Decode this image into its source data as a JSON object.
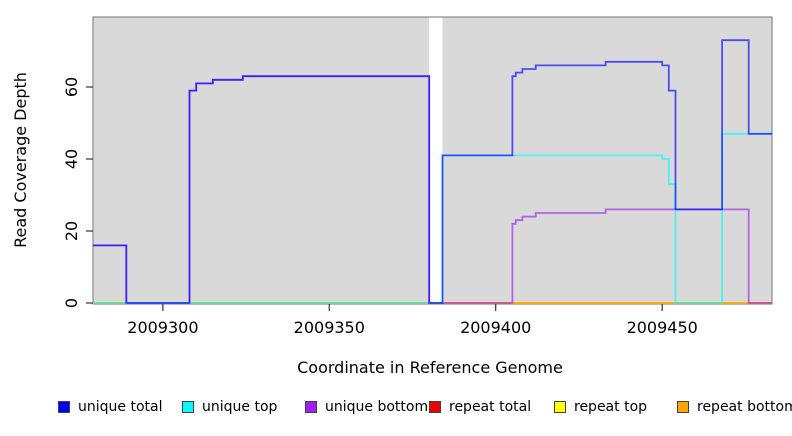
{
  "chart_data": {
    "type": "line",
    "subtype": "step",
    "title": "",
    "xlabel": "Coordinate in Reference Genome",
    "ylabel": "Read Coverage Depth",
    "xlim": [
      2009279,
      2009483
    ],
    "ylim": [
      0,
      79
    ],
    "x_ticks": [
      "2009300",
      "2009350",
      "2009400",
      "2009450"
    ],
    "x_tick_values": [
      2009300,
      2009350,
      2009400,
      2009450
    ],
    "y_ticks": [
      "0",
      "20",
      "40",
      "60"
    ],
    "y_tick_values": [
      0,
      20,
      40,
      60
    ],
    "grid": false,
    "legend_position": "bottom",
    "panel_background": "#d9d9d9",
    "panel_border": "#8a8a8a",
    "gap_region": {
      "x_start": 2009380,
      "x_end": 2009384
    },
    "line_opacity": 0.65,
    "line_width": 1.8,
    "draw_order": [
      "repeat total",
      "repeat top",
      "repeat bottom",
      "unique bottom",
      "unique top",
      "unique total"
    ],
    "series": [
      {
        "name": "unique total",
        "color": "#0000ff",
        "steps": [
          [
            2009279,
            16
          ],
          [
            2009289,
            0
          ],
          [
            2009308,
            59
          ],
          [
            2009310,
            61
          ],
          [
            2009315,
            62
          ],
          [
            2009324,
            63
          ],
          [
            2009380,
            0
          ],
          [
            2009384,
            41
          ],
          [
            2009405,
            63
          ],
          [
            2009406,
            64
          ],
          [
            2009408,
            65
          ],
          [
            2009412,
            66
          ],
          [
            2009433,
            67
          ],
          [
            2009450,
            66
          ],
          [
            2009452,
            59
          ],
          [
            2009454,
            26
          ],
          [
            2009468,
            73
          ],
          [
            2009476,
            47
          ],
          [
            2009483,
            47
          ]
        ]
      },
      {
        "name": "unique top",
        "color": "#00ffff",
        "steps": [
          [
            2009279,
            0
          ],
          [
            2009384,
            41
          ],
          [
            2009450,
            40
          ],
          [
            2009452,
            33
          ],
          [
            2009454,
            0
          ],
          [
            2009468,
            47
          ],
          [
            2009483,
            47
          ]
        ]
      },
      {
        "name": "unique bottom",
        "color": "#a020f0",
        "steps": [
          [
            2009279,
            16
          ],
          [
            2009289,
            0
          ],
          [
            2009308,
            59
          ],
          [
            2009310,
            61
          ],
          [
            2009315,
            62
          ],
          [
            2009324,
            63
          ],
          [
            2009380,
            0
          ],
          [
            2009405,
            22
          ],
          [
            2009406,
            23
          ],
          [
            2009408,
            24
          ],
          [
            2009412,
            25
          ],
          [
            2009433,
            26
          ],
          [
            2009476,
            0
          ],
          [
            2009483,
            0
          ]
        ]
      },
      {
        "name": "repeat total",
        "color": "#ff0000",
        "steps": [
          [
            2009279,
            0
          ],
          [
            2009483,
            0
          ]
        ]
      },
      {
        "name": "repeat top",
        "color": "#ffff00",
        "steps": [
          [
            2009279,
            0
          ],
          [
            2009483,
            0
          ]
        ]
      },
      {
        "name": "repeat bottom",
        "color": "#ffa500",
        "steps": [
          [
            2009279,
            0
          ],
          [
            2009483,
            0
          ]
        ]
      }
    ]
  },
  "legend": {
    "items": [
      {
        "label": "unique total",
        "color": "#0000ee"
      },
      {
        "label": "unique top",
        "color": "#00ffff"
      },
      {
        "label": "unique bottom",
        "color": "#a020f0"
      },
      {
        "label": "repeat total",
        "color": "#ee0000"
      },
      {
        "label": "repeat top",
        "color": "#ffff00"
      },
      {
        "label": "repeat bottom",
        "color": "#ffa500"
      }
    ]
  }
}
